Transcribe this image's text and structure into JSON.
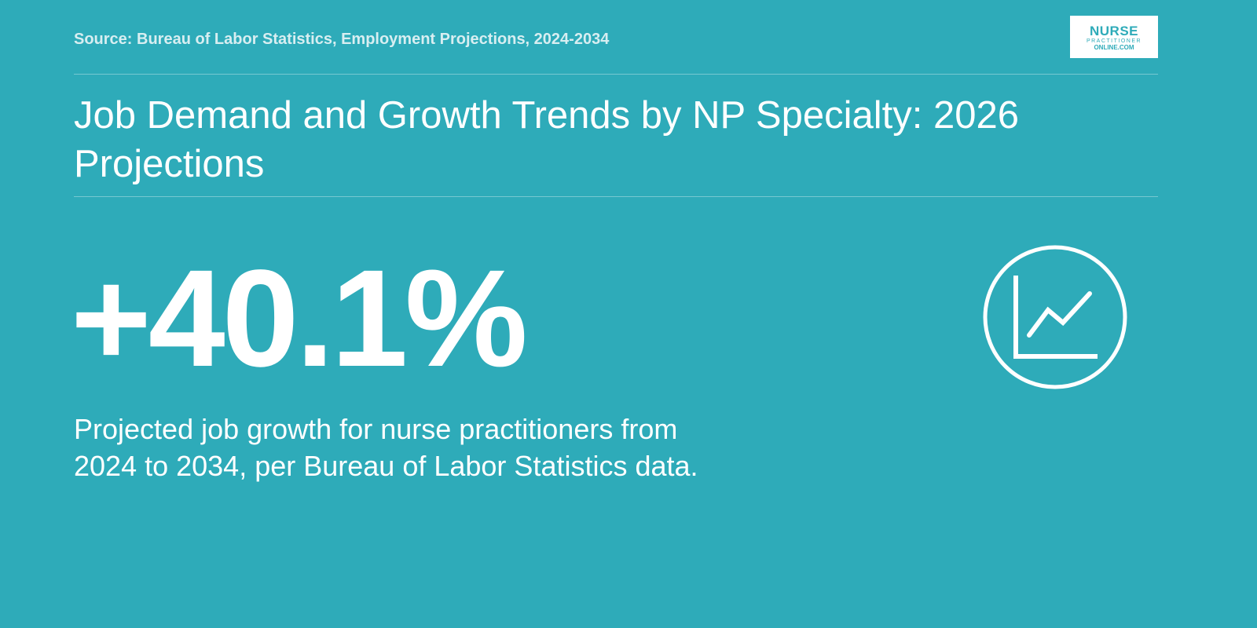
{
  "header": {
    "source": "Source: Bureau of Labor Statistics, Employment Projections, 2024-2034",
    "logo": {
      "line1": "NURSE",
      "line2": "PRACTITIONER",
      "line3": "ONLINE.COM"
    }
  },
  "title": "Job Demand and Growth Trends by NP Specialty: 2026 Projections",
  "stat": {
    "value": "+40.1%",
    "description": "Projected job growth for nurse practitioners from 2024 to 2034, per Bureau of Labor Statistics data."
  }
}
